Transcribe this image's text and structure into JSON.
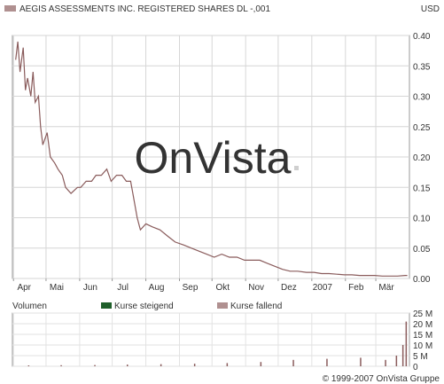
{
  "header": {
    "title": "AEGIS ASSESSMENTS INC. REGISTERED SHARES DL -,001",
    "currency": "USD"
  },
  "watermark": "OnVista",
  "copyright": "© 1999-2007 OnVista Gruppe",
  "colors": {
    "price_line": "#8a5c5c",
    "legend_falling": "#b09090",
    "legend_rising": "#1f5f2a",
    "panel_border": "#999999",
    "grid": "#d6d6d6",
    "watermark": "#cfcfcf",
    "copyright": "#9a4a3a"
  },
  "volume_legend": {
    "label": "Volumen",
    "rising": "Kurse steigend",
    "falling": "Kurse fallend"
  },
  "chart_data": [
    {
      "type": "line",
      "ylim": [
        0,
        0.4
      ],
      "yticks": [
        "0.40",
        "0.35",
        "0.30",
        "0.25",
        "0.20",
        "0.15",
        "0.10",
        "0.05",
        "0.00"
      ],
      "xticks": [
        "Apr",
        "Mai",
        "Jun",
        "Jul",
        "Aug",
        "Sep",
        "Okt",
        "Nov",
        "Dez",
        "2007",
        "Feb",
        "Mär"
      ],
      "grid": true,
      "series": [
        {
          "x": [
            "2006-04-03",
            "2006-04-05",
            "2006-04-07",
            "2006-04-10",
            "2006-04-12",
            "2006-04-14",
            "2006-04-17",
            "2006-04-19",
            "2006-04-21",
            "2006-04-24",
            "2006-04-26",
            "2006-04-28",
            "2006-05-02",
            "2006-05-05",
            "2006-05-09",
            "2006-05-12",
            "2006-05-16",
            "2006-05-19",
            "2006-05-24",
            "2006-05-30",
            "2006-06-02",
            "2006-06-07",
            "2006-06-12",
            "2006-06-16",
            "2006-06-21",
            "2006-06-26",
            "2006-06-30",
            "2006-07-05",
            "2006-07-10",
            "2006-07-14",
            "2006-07-18",
            "2006-07-20",
            "2006-07-24",
            "2006-07-27",
            "2006-08-01",
            "2006-08-07",
            "2006-08-14",
            "2006-08-21",
            "2006-08-28",
            "2006-09-05",
            "2006-09-12",
            "2006-09-19",
            "2006-09-26",
            "2006-10-03",
            "2006-10-10",
            "2006-10-17",
            "2006-10-24",
            "2006-10-31",
            "2006-11-07",
            "2006-11-14",
            "2006-11-21",
            "2006-11-28",
            "2006-12-05",
            "2006-12-12",
            "2006-12-19",
            "2006-12-27",
            "2007-01-03",
            "2007-01-10",
            "2007-01-17",
            "2007-01-24",
            "2007-01-31",
            "2007-02-07",
            "2007-02-14",
            "2007-02-21",
            "2007-02-28",
            "2007-03-07",
            "2007-03-14",
            "2007-03-21",
            "2007-03-28",
            "2007-03-30"
          ],
          "values": [
            0.36,
            0.39,
            0.34,
            0.38,
            0.31,
            0.33,
            0.3,
            0.34,
            0.29,
            0.3,
            0.25,
            0.22,
            0.24,
            0.2,
            0.19,
            0.18,
            0.17,
            0.15,
            0.14,
            0.15,
            0.15,
            0.16,
            0.16,
            0.17,
            0.17,
            0.18,
            0.16,
            0.17,
            0.17,
            0.16,
            0.16,
            0.14,
            0.1,
            0.08,
            0.09,
            0.085,
            0.08,
            0.07,
            0.06,
            0.055,
            0.05,
            0.045,
            0.04,
            0.035,
            0.04,
            0.035,
            0.035,
            0.03,
            0.03,
            0.03,
            0.025,
            0.02,
            0.015,
            0.012,
            0.012,
            0.01,
            0.01,
            0.008,
            0.008,
            0.007,
            0.006,
            0.006,
            0.005,
            0.005,
            0.005,
            0.004,
            0.004,
            0.004,
            0.005,
            0.005
          ]
        }
      ]
    },
    {
      "type": "bar",
      "ylim": [
        0,
        25
      ],
      "yticks": [
        "25 M",
        "20 M",
        "15 M",
        "10 M",
        "5 M",
        "0"
      ],
      "x": [
        "2006-04",
        "2006-05",
        "2006-06",
        "2006-07",
        "2006-08",
        "2006-09",
        "2006-10",
        "2006-11",
        "2006-12",
        "2007-01",
        "2007-02",
        "2007-03-10",
        "2007-03-20",
        "2007-03-26",
        "2007-03-29"
      ],
      "values": [
        0.4,
        0.5,
        0.6,
        0.8,
        1.0,
        1.2,
        1.5,
        2.0,
        3.0,
        3.5,
        4.0,
        3.0,
        5.0,
        10.0,
        21.0
      ]
    }
  ]
}
